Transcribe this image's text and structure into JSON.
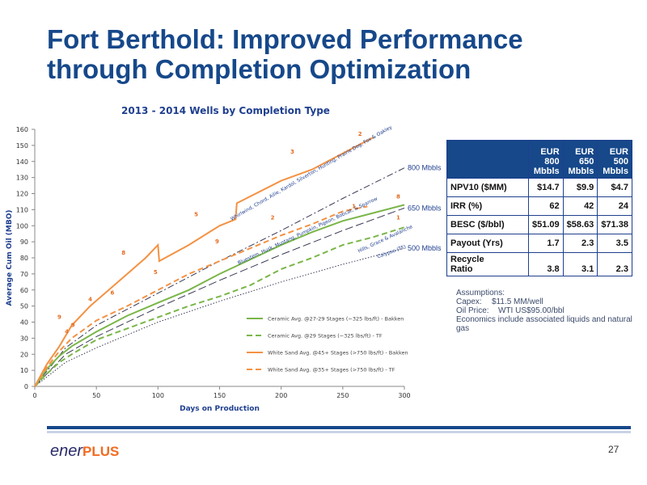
{
  "slide": {
    "title_line1": "Fort Berthold:  Improved Performance",
    "title_line2": "through  Completion Optimization",
    "page_number": "27",
    "logo_ener": "ener",
    "logo_plus": "PLUS"
  },
  "chart_data": {
    "type": "line",
    "title": "2013 - 2014 Wells by Completion Type",
    "xlabel": "Days on Production",
    "ylabel": "Average Cum Oil (MBO)",
    "xlim": [
      0,
      300
    ],
    "ylim": [
      0,
      160
    ],
    "x_ticks": [
      0,
      50,
      100,
      150,
      200,
      250,
      300
    ],
    "y_ticks": [
      0,
      10,
      20,
      30,
      40,
      50,
      60,
      70,
      80,
      90,
      100,
      110,
      120,
      130,
      140,
      150,
      160
    ],
    "series": [
      {
        "name": "Ceramic Avg. @27-29 Stages (~325 lbs/ft) - Bakken",
        "color": "#7ab648",
        "style": "solid",
        "x": [
          0,
          10,
          20,
          30,
          50,
          75,
          100,
          125,
          150,
          175,
          200,
          225,
          250,
          275,
          300
        ],
        "y": [
          0,
          11,
          19,
          25,
          34,
          44,
          52,
          60,
          70,
          79,
          88,
          96,
          103,
          108,
          113
        ]
      },
      {
        "name": "Ceramic Avg. @29 Stages (~325 lbs/ft) - TF",
        "color": "#7ab648",
        "style": "dashed",
        "x": [
          0,
          10,
          20,
          30,
          50,
          75,
          100,
          125,
          150,
          175,
          200,
          225,
          250,
          275,
          300
        ],
        "y": [
          0,
          8,
          15,
          20,
          29,
          36,
          43,
          50,
          56,
          63,
          73,
          80,
          88,
          93,
          99
        ]
      },
      {
        "name": "White Sand Avg. @45+ Stages (>750 lbs/ft) - Bakken",
        "color": "#f39244",
        "style": "solid",
        "x": [
          0,
          10,
          20,
          30,
          45,
          60,
          75,
          90,
          100,
          101,
          125,
          150,
          163,
          164,
          200,
          225,
          250,
          275
        ],
        "y": [
          0,
          14,
          25,
          38,
          50,
          60,
          70,
          80,
          88,
          78,
          88,
          100,
          104,
          114,
          128,
          135,
          145,
          155
        ]
      },
      {
        "name": "White Sand Avg. @35+ Stages (>750 lbs/ft) - TF",
        "color": "#f39244",
        "style": "dashed",
        "x": [
          0,
          10,
          20,
          30,
          50,
          75,
          100,
          125,
          150,
          175,
          200,
          225,
          250,
          270
        ],
        "y": [
          0,
          12,
          22,
          30,
          41,
          50,
          60,
          70,
          78,
          86,
          94,
          101,
          109,
          112
        ]
      }
    ],
    "type_curves": [
      {
        "label": "800 Mbbls",
        "color": "#3a3a55",
        "style": "dashdot",
        "x": [
          0,
          25,
          50,
          100,
          150,
          200,
          250,
          300
        ],
        "y": [
          0,
          24,
          38,
          58,
          78,
          97,
          117,
          136
        ]
      },
      {
        "label": "650 Mbbls",
        "color": "#3a3a55",
        "style": "longdash",
        "x": [
          0,
          25,
          50,
          100,
          150,
          200,
          250,
          300
        ],
        "y": [
          0,
          20,
          31,
          49,
          66,
          82,
          97,
          111
        ]
      },
      {
        "label": "500 Mbbls",
        "color": "#3a3a55",
        "style": "dotted",
        "x": [
          0,
          25,
          50,
          100,
          150,
          200,
          250,
          300
        ],
        "y": [
          0,
          15,
          24,
          40,
          53,
          65,
          76,
          86
        ]
      }
    ],
    "annotations": [
      {
        "text": "Whirlwind, Chord, Ailie, Kardol, Silverton, Hunting, Prairie Dog, Fox  & Oakley",
        "color": "#1f3f8f",
        "x": 225,
        "y": 132,
        "rotate": -30
      },
      {
        "text": "Bluestem, Husk, Mustang, Pumpkin, Pigeon, Bobcat, & Sparrow",
        "color": "#1f3f8f",
        "x": 222,
        "y": 96,
        "rotate": -25
      },
      {
        "text": "Hills, Grace & Avalanche",
        "color": "#1f3f8f",
        "x": 285,
        "y": 91,
        "rotate": -25
      },
      {
        "text": "Calypso (TF)",
        "color": "#1f3f8f",
        "x": 290,
        "y": 83,
        "rotate": -20
      }
    ],
    "point_labels": [
      {
        "text": "9",
        "x": 20,
        "y": 42
      },
      {
        "text": "9",
        "x": 31,
        "y": 37
      },
      {
        "text": "8",
        "x": 72,
        "y": 82
      },
      {
        "text": "6",
        "x": 63,
        "y": 57
      },
      {
        "text": "4",
        "x": 45,
        "y": 53
      },
      {
        "text": "5",
        "x": 98,
        "y": 70
      },
      {
        "text": "5",
        "x": 131,
        "y": 106
      },
      {
        "text": "9",
        "x": 148,
        "y": 89
      },
      {
        "text": "3",
        "x": 209,
        "y": 145
      },
      {
        "text": "2",
        "x": 264,
        "y": 156
      },
      {
        "text": "2",
        "x": 193,
        "y": 104
      },
      {
        "text": "1",
        "x": 259,
        "y": 111
      },
      {
        "text": "8",
        "x": 295,
        "y": 117
      },
      {
        "text": "1",
        "x": 295,
        "y": 104
      },
      {
        "text": "4",
        "x": 26,
        "y": 33
      }
    ]
  },
  "economics": {
    "col_headers": [
      "EUR 800 Mbbls",
      "EUR 650 Mbbls",
      "EUR 500 Mbbls"
    ],
    "col_header_lines": [
      [
        "EUR",
        "800",
        "Mbbls"
      ],
      [
        "EUR",
        "650",
        "Mbbls"
      ],
      [
        "EUR",
        "500",
        "Mbbls"
      ]
    ],
    "rows": [
      {
        "label": "NPV10 ($MM)",
        "values": [
          "$14.7",
          "$9.9",
          "$4.7"
        ]
      },
      {
        "label": "IRR (%)",
        "values": [
          "62",
          "42",
          "24"
        ]
      },
      {
        "label": "BESC ($/bbl)",
        "values": [
          "$51.09",
          "$58.63",
          "$71.38"
        ]
      },
      {
        "label": "Payout (Yrs)",
        "values": [
          "1.7",
          "2.3",
          "3.5"
        ]
      },
      {
        "label_lines": [
          "Recycle",
          "Ratio"
        ],
        "label": "Recycle Ratio",
        "values": [
          "3.8",
          "3.1",
          "2.3"
        ]
      }
    ]
  },
  "assumptions": {
    "heading": "Assumptions:",
    "capex_label": "Capex:",
    "capex_value": "$11.5 MM/well",
    "oil_label": "Oil Price:",
    "oil_value": "WTI US$95.00/bbl",
    "note": "Economics include associated liquids and natural gas"
  },
  "colors": {
    "title_blue": "#16488a",
    "green": "#7ab648",
    "orange": "#f39244",
    "type_curve": "#3a3a55"
  }
}
